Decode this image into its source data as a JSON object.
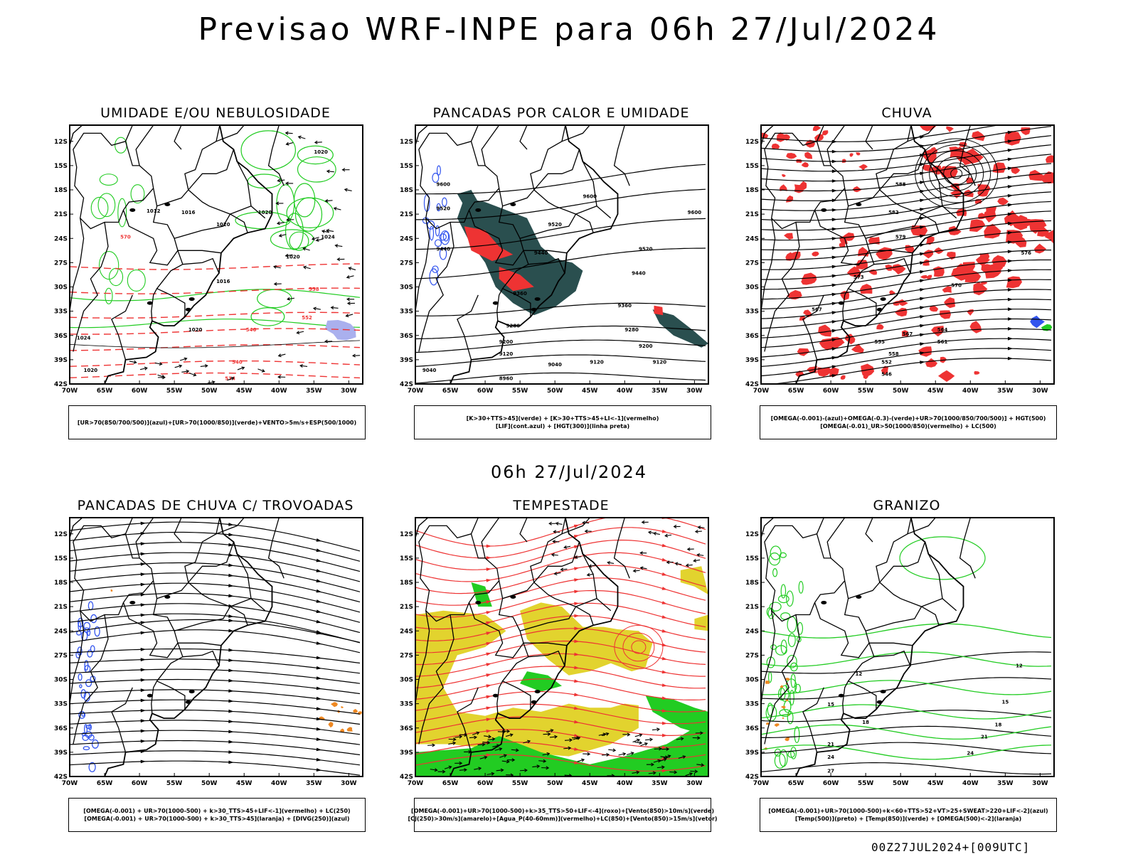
{
  "header": {
    "title": "Previsao WRF-INPE  para 06h 27/Jul/2024"
  },
  "middle": {
    "title": "06h 27/Jul/2024"
  },
  "footer": {
    "text": "00Z27JUL2024+[009UTC]"
  },
  "axes": {
    "lat_labels": [
      "12S",
      "15S",
      "18S",
      "21S",
      "24S",
      "27S",
      "30S",
      "33S",
      "36S",
      "39S",
      "42S"
    ],
    "lon_labels": [
      "70W",
      "65W",
      "60W",
      "55W",
      "50W",
      "45W",
      "40W",
      "35W",
      "30W"
    ]
  },
  "colors": {
    "green": "#22cc22",
    "red": "#ee3333",
    "dark_teal": "#2a4f4f",
    "blue": "#3355ee",
    "yellow": "#e2d32e",
    "orange": "#ee8822",
    "lavender": "#aab0ee",
    "dark_green": "#11aa11"
  },
  "panels": [
    {
      "id": "p1",
      "title": "UMIDADE E/OU NEBULOSIDADE",
      "legend": [
        "[UR>70(850/700/500)](azul)+[UR>70(1000/850)](verde)+VENTO>5m/s+ESP(500/1000)"
      ],
      "contour_labels": [
        "1020",
        "1016",
        "1012",
        "1020",
        "1024",
        "1020",
        "1016",
        "1020",
        "570",
        "564",
        "558",
        "552",
        "546",
        "540",
        "534"
      ]
    },
    {
      "id": "p2",
      "title": "PANCADAS POR CALOR E UMIDADE",
      "legend": [
        "[K>30+TTS>45](verde)  +  [K>30+TTS>45+LI<-1](vermelho)",
        "[LIF](cont.azul)  +  [HGT(300)](linha preta)"
      ],
      "contour_labels": [
        "9600",
        "9520",
        "9440",
        "9360",
        "9280",
        "9200",
        "9120",
        "9040",
        "8960"
      ]
    },
    {
      "id": "p3",
      "title": "CHUVA",
      "legend": [
        "[OMEGA(-0.001)-(azul)+OMEGA(-0.3)-(verde)+UR>70(1000/850/700/500)]  +  HGT(500)",
        "[OMEGA(-0.01)_UR>50(1000/850)(vermelho)  +  LC(500)"
      ],
      "contour_labels": [
        "588",
        "582",
        "579",
        "576",
        "573",
        "570",
        "567",
        "564",
        "561",
        "558",
        "555",
        "552",
        "546"
      ]
    },
    {
      "id": "p4",
      "title": "PANCADAS DE CHUVA C/ TROVOADAS",
      "legend": [
        "[OMEGA(-0.001)  +  UR>70(1000-500)  +  k>30_TTS>45+LIF<-1](vermelho)  +  LC(250)",
        "[OMEGA(-0.001)  +  UR>70(1000-500)  +  k>30_TTS>45](laranja)  +  [DIVG(250)](azul)"
      ],
      "contour_labels": []
    },
    {
      "id": "p5",
      "title": "TEMPESTADE",
      "legend": [
        "[OMEGA(-0.001)+UR>70(1000-500)+k>35_TTS>50+LIF<-4](roxo)+[Vento(850)>10m/s](verde)",
        "[CJ(250)>30m/s](amarelo)+[Agua_P(40-60mm)](vermelho)+LC(850)+[Vento(850)>15m/s](vetor)"
      ],
      "contour_labels": []
    },
    {
      "id": "p6",
      "title": "GRANIZO",
      "legend": [
        "[OMEGA(-0.001)+UR>70(1000-500)+k<60+TTS>52+VT>25+SWEAT>220+LIF<-2](azul)",
        "[Temp(500)](preto)  +  [Temp(850)](verde)  +  [OMEGA(500)<-2](laranja)"
      ],
      "contour_labels": [
        "12",
        "15",
        "18",
        "21",
        "24",
        "27"
      ]
    }
  ]
}
